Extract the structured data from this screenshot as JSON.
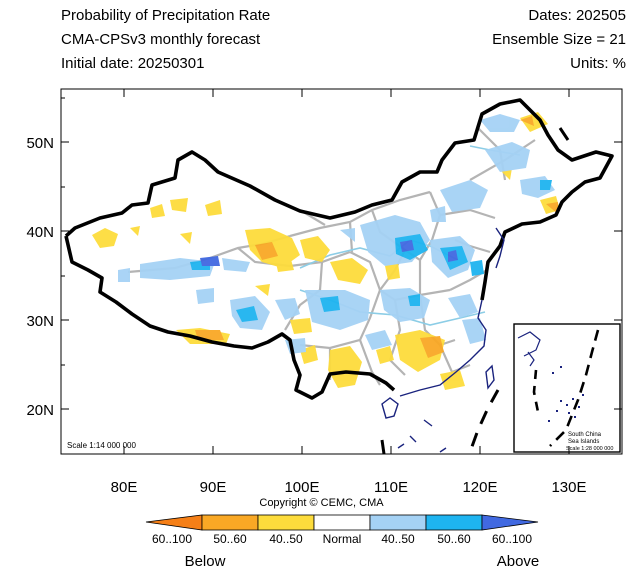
{
  "header": {
    "title": "Probability of Precipitation Rate",
    "subtitle": "CMA-CPSv3 monthly forecast",
    "initial_date": "Initial date: 20250301",
    "dates": "Dates: 202505",
    "ensemble": "Ensemble Size = 21",
    "units": "Units: %"
  },
  "map": {
    "lat_ticks": [
      "50N",
      "40N",
      "30N",
      "20N"
    ],
    "lon_ticks": [
      "80E",
      "90E",
      "100E",
      "110E",
      "120E",
      "130E"
    ],
    "scale_main": "Scale 1:14 000 000",
    "inset_label_1": "South China",
    "inset_label_2": "Sea Islands",
    "inset_scale": "Scale 1:28 000 000"
  },
  "copyright": "Copyright © CEMC, CMA",
  "colorbar": {
    "labels": [
      "60..100",
      "50..60",
      "40..50",
      "Normal",
      "40..50",
      "50..60",
      "60..100"
    ],
    "colors": [
      "#f57f17",
      "#f9a825",
      "#fddc3c",
      "#ffffff",
      "#a5d2f5",
      "#1eb4f0",
      "#4169e1"
    ],
    "below": "Below",
    "above": "Above"
  }
}
